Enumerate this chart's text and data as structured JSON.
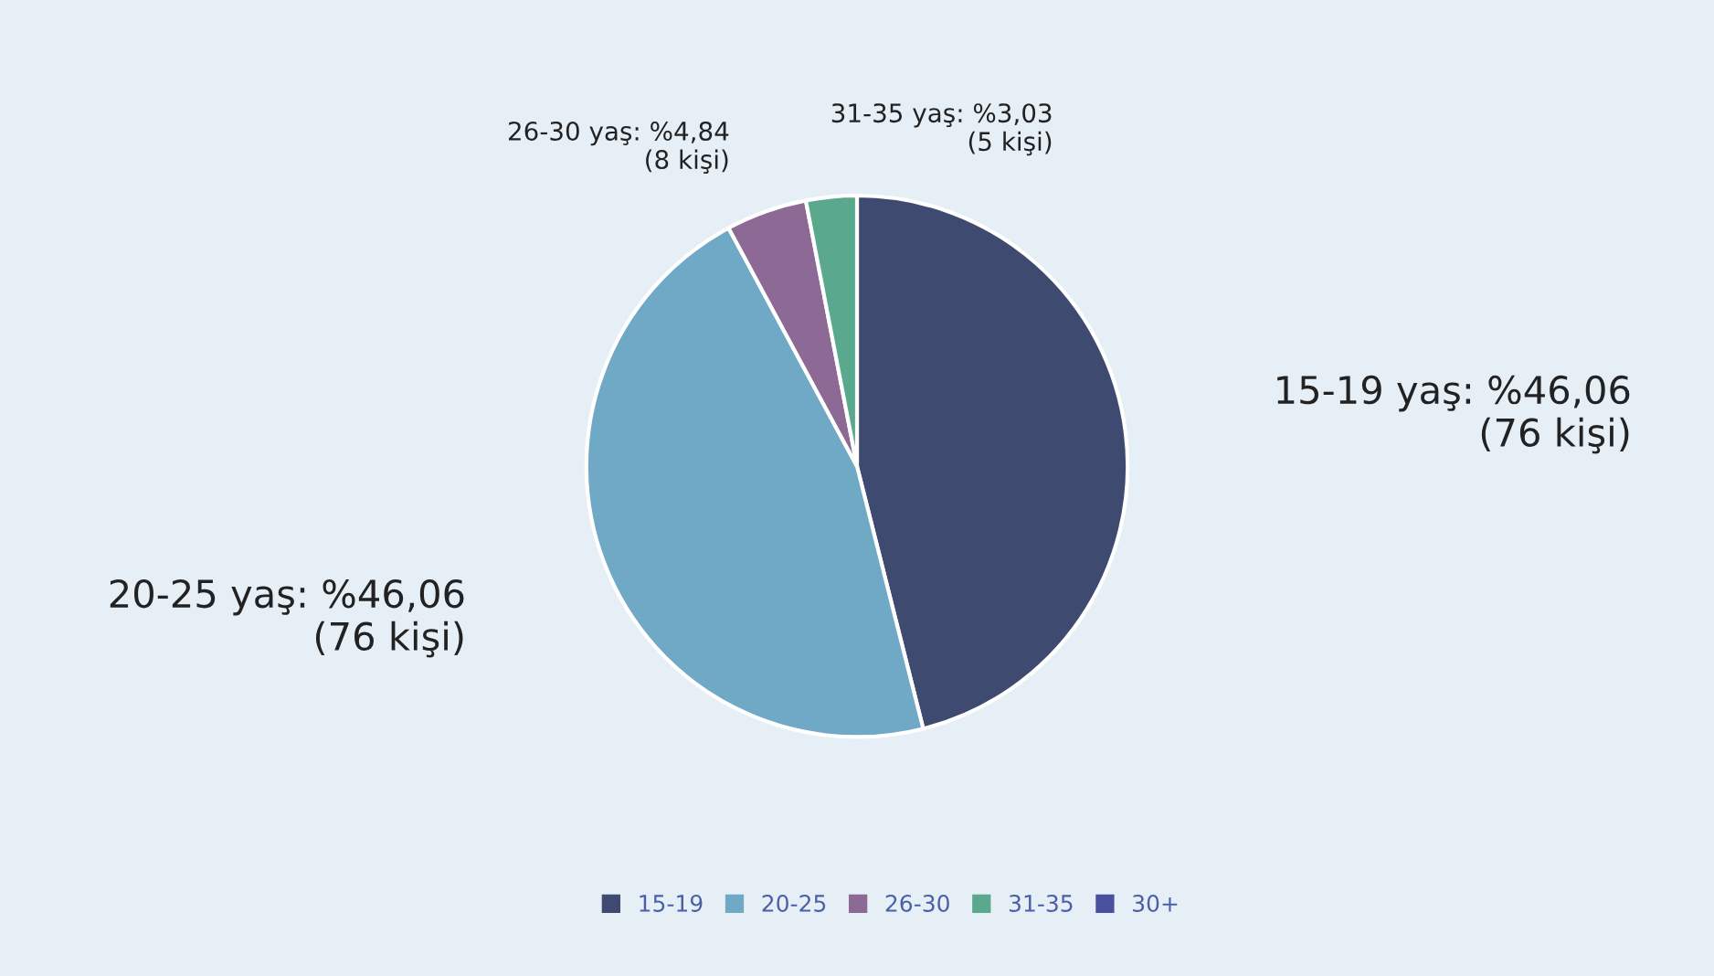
{
  "chart_data": {
    "type": "pie",
    "categories": [
      "15-19",
      "20-25",
      "26-30",
      "31-35",
      "30+"
    ],
    "values": [
      46.06,
      46.06,
      4.84,
      3.03,
      0
    ],
    "colors": [
      "#3f4a70",
      "#70a9c5",
      "#8d6a95",
      "#5aa98e",
      "#4a4f9e"
    ],
    "value_labels": [
      "15-19 yaş: %46,06\n(76 kişi)",
      "20-25 yaş: %46,06\n(76 kişi)",
      "26-30 yaş: %4,84\n(8 kişi)",
      "31-35 yaş: %3,03\n(5 kişi)",
      null
    ],
    "legend": "bottom"
  }
}
